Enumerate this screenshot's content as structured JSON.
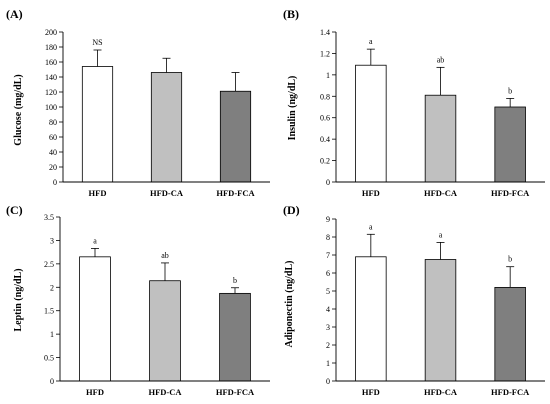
{
  "chart_data": [
    {
      "type": "bar",
      "panel": "(A)",
      "ylabel": "Glucose (mg/dL)",
      "categories": [
        "HFD",
        "HFD-CA",
        "HFD-FCA"
      ],
      "values": [
        154,
        146,
        121
      ],
      "errors": [
        22,
        19,
        25
      ],
      "annotations": [
        "NS",
        "",
        ""
      ],
      "ylim": [
        0,
        200
      ],
      "yticks": [
        "0",
        "20",
        "40",
        "60",
        "80",
        "100",
        "120",
        "140",
        "160",
        "180",
        "200"
      ],
      "tick_values": [
        0,
        20,
        40,
        60,
        80,
        100,
        120,
        140,
        160,
        180,
        200
      ],
      "colors": [
        "#ffffff",
        "#c0c0c0",
        "#7f7f7f"
      ]
    },
    {
      "type": "bar",
      "panel": "(B)",
      "ylabel": "Insulin (ng/dL)",
      "categories": [
        "HFD",
        "HFD-CA",
        "HFD-FCA"
      ],
      "values": [
        1.09,
        0.81,
        0.7
      ],
      "errors": [
        0.15,
        0.26,
        0.08
      ],
      "annotations": [
        "a",
        "ab",
        "b"
      ],
      "ylim": [
        0,
        1.4
      ],
      "yticks": [
        "0",
        "0.2",
        "0.4",
        "0.6",
        "0.8",
        "1",
        "1.2",
        "1.4"
      ],
      "tick_values": [
        0,
        0.2,
        0.4,
        0.6,
        0.8,
        1.0,
        1.2,
        1.4
      ],
      "colors": [
        "#ffffff",
        "#c0c0c0",
        "#7f7f7f"
      ]
    },
    {
      "type": "bar",
      "panel": "(C)",
      "ylabel": "Leptin (ng/dL)",
      "categories": [
        "HFD",
        "HFD-CA",
        "HFD-FCA"
      ],
      "values": [
        2.65,
        2.14,
        1.87
      ],
      "errors": [
        0.18,
        0.38,
        0.12
      ],
      "annotations": [
        "a",
        "ab",
        "b"
      ],
      "ylim": [
        0,
        3.5
      ],
      "yticks": [
        "0",
        "0.5",
        "1",
        "1.5",
        "2",
        "2.5",
        "3",
        "3.5"
      ],
      "tick_values": [
        0,
        0.5,
        1.0,
        1.5,
        2.0,
        2.5,
        3.0,
        3.5
      ],
      "colors": [
        "#ffffff",
        "#c0c0c0",
        "#7f7f7f"
      ]
    },
    {
      "type": "bar",
      "panel": "(D)",
      "ylabel": "Adiponectin (ng/dL)",
      "categories": [
        "HFD",
        "HFD-CA",
        "HFD-FCA"
      ],
      "values": [
        6.9,
        6.75,
        5.2
      ],
      "errors": [
        1.25,
        0.95,
        1.15
      ],
      "annotations": [
        "a",
        "a",
        "b"
      ],
      "ylim": [
        0,
        9
      ],
      "yticks": [
        "0",
        "1",
        "2",
        "3",
        "4",
        "5",
        "6",
        "7",
        "8",
        "9"
      ],
      "tick_values": [
        0,
        1,
        2,
        3,
        4,
        5,
        6,
        7,
        8,
        9
      ],
      "colors": [
        "#ffffff",
        "#c0c0c0",
        "#7f7f7f"
      ]
    }
  ]
}
